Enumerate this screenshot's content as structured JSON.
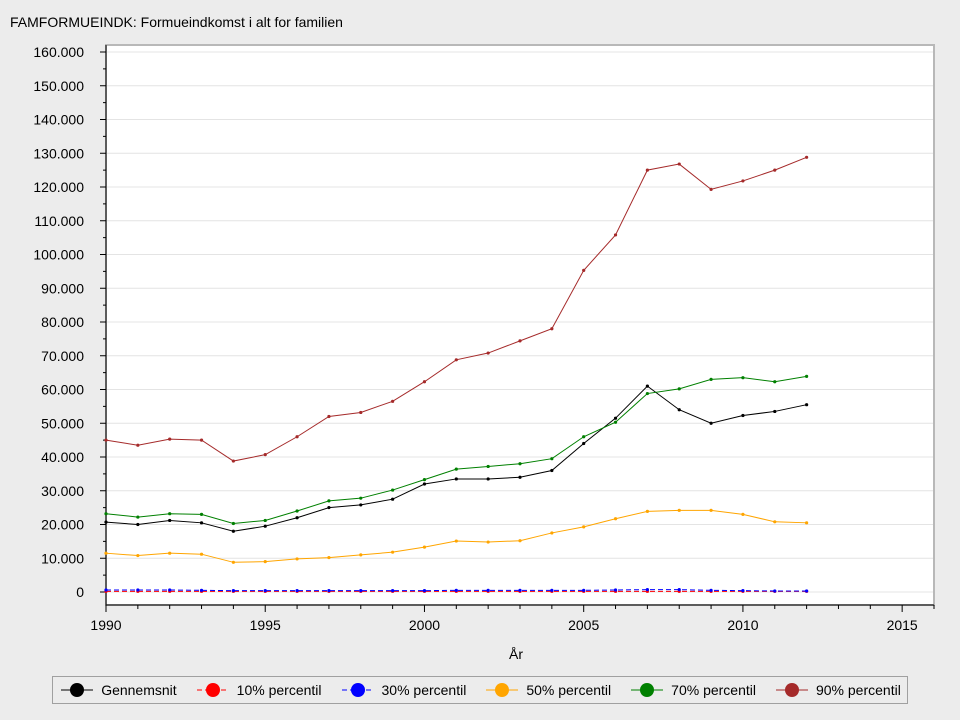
{
  "chart_data": {
    "type": "line",
    "title": "FAMFORMUEINDK: Formueindkomst i alt for familien",
    "xlabel": "År",
    "ylabel": "",
    "xlim": [
      1990,
      2016
    ],
    "ylim": [
      0,
      160000
    ],
    "x_ticks": [
      1990,
      1995,
      2000,
      2005,
      2010,
      2015
    ],
    "y_ticks": [
      0,
      10000,
      20000,
      30000,
      40000,
      50000,
      60000,
      70000,
      80000,
      90000,
      100000,
      110000,
      120000,
      130000,
      140000,
      150000,
      160000
    ],
    "y_tick_labels": [
      "0",
      "10.000",
      "20.000",
      "30.000",
      "40.000",
      "50.000",
      "60.000",
      "70.000",
      "80.000",
      "90.000",
      "100.000",
      "110.000",
      "120.000",
      "130.000",
      "140.000",
      "150.000",
      "160.000"
    ],
    "grid": true,
    "legend_position": "bottom",
    "x": [
      1990,
      1991,
      1992,
      1993,
      1994,
      1995,
      1996,
      1997,
      1998,
      1999,
      2000,
      2001,
      2002,
      2003,
      2004,
      2005,
      2006,
      2007,
      2008,
      2009,
      2010,
      2011,
      2012
    ],
    "series": [
      {
        "name": "Gennemsnit",
        "color": "#000000",
        "dash": "solid",
        "values": [
          20700,
          20000,
          21200,
          20500,
          18000,
          19500,
          22000,
          25000,
          25800,
          27500,
          32000,
          33500,
          33500,
          34000,
          36000,
          44000,
          51500,
          61000,
          54000,
          50000,
          52300,
          53500,
          55500
        ]
      },
      {
        "name": "10% percentil",
        "color": "#ff0000",
        "dash": "dashed",
        "values": [
          200,
          200,
          200,
          200,
          200,
          200,
          200,
          200,
          200,
          200,
          200,
          200,
          200,
          200,
          200,
          200,
          200,
          200,
          200,
          200,
          200,
          200,
          200
        ]
      },
      {
        "name": "30% percentil",
        "color": "#0000ff",
        "dash": "dashed",
        "values": [
          600,
          600,
          600,
          500,
          400,
          400,
          400,
          400,
          400,
          400,
          400,
          500,
          500,
          500,
          500,
          500,
          600,
          700,
          700,
          500,
          400,
          300,
          300
        ]
      },
      {
        "name": "50% percentil",
        "color": "#ffa500",
        "dash": "solid",
        "values": [
          11500,
          10800,
          11500,
          11200,
          8800,
          9000,
          9800,
          10200,
          11000,
          11800,
          13300,
          15100,
          14800,
          15200,
          17500,
          19300,
          21700,
          23900,
          24200,
          24200,
          23000,
          20800,
          20500
        ]
      },
      {
        "name": "70% percentil",
        "color": "#008000",
        "dash": "solid",
        "values": [
          23200,
          22200,
          23200,
          23000,
          20300,
          21200,
          24000,
          27000,
          27800,
          30200,
          33300,
          36400,
          37200,
          38000,
          39500,
          46000,
          50300,
          58800,
          60200,
          63000,
          63500,
          62300,
          63900
        ]
      },
      {
        "name": "90% percentil",
        "color": "#a52a2a",
        "dash": "solid",
        "values": [
          45000,
          43500,
          45300,
          45000,
          38800,
          40700,
          46000,
          52000,
          53200,
          56500,
          62300,
          68800,
          70800,
          74400,
          78000,
          95300,
          105800,
          125000,
          126800,
          119300,
          121800,
          125000,
          128800
        ]
      }
    ]
  },
  "legend": {
    "items": [
      {
        "label": "Gennemsnit",
        "color": "#000000",
        "dash": "solid"
      },
      {
        "label": "10% percentil",
        "color": "#ff0000",
        "dash": "dashed"
      },
      {
        "label": "30% percentil",
        "color": "#0000ff",
        "dash": "dashed"
      },
      {
        "label": "50% percentil",
        "color": "#ffa500",
        "dash": "solid"
      },
      {
        "label": "70% percentil",
        "color": "#008000",
        "dash": "solid"
      },
      {
        "label": "90% percentil",
        "color": "#a52a2a",
        "dash": "solid"
      }
    ]
  }
}
